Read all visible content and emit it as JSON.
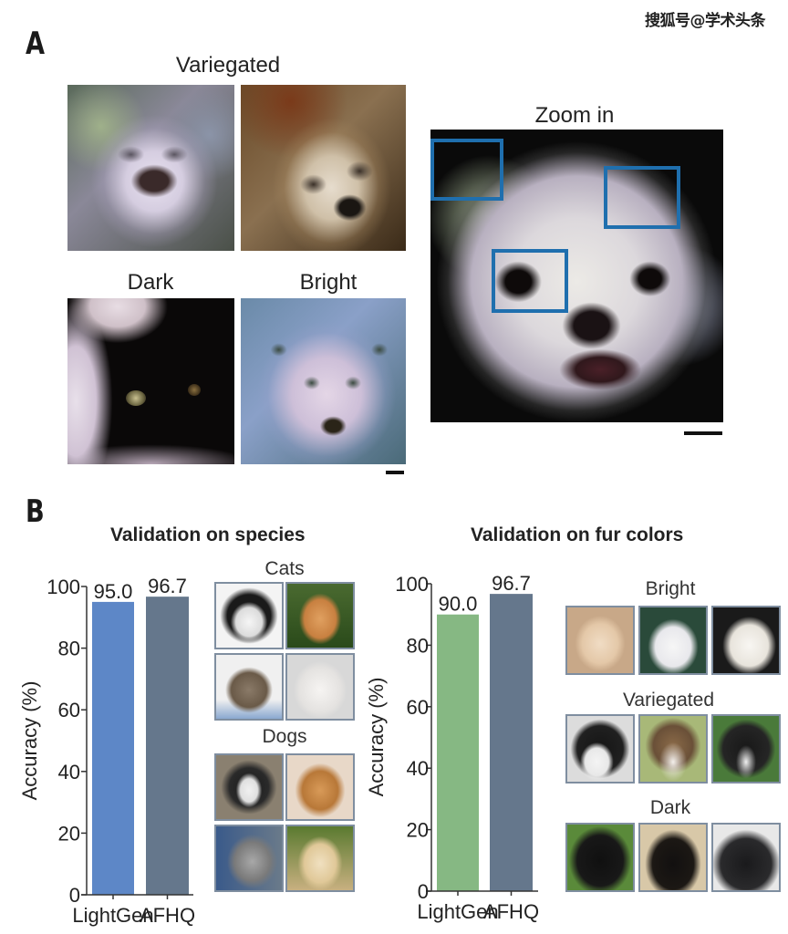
{
  "watermark": "搜狐号@学术头条",
  "panel_a": {
    "letter": "A",
    "labels": {
      "variegated": "Variegated",
      "dark": "Dark",
      "bright": "Bright",
      "zoom_in": "Zoom in"
    }
  },
  "panel_b": {
    "letter": "B",
    "species": {
      "title": "Validation on species",
      "groups": {
        "cats": "Cats",
        "dogs": "Dogs"
      }
    },
    "fur": {
      "title": "Validation on fur colors",
      "groups": {
        "bright": "Bright",
        "variegated": "Variegated",
        "dark": "Dark"
      }
    }
  },
  "colors": {
    "lightgen_species": "#5d87c7",
    "afhq": "#65778c",
    "lightgen_fur": "#86b883",
    "zoom_box": "#1f6fae"
  },
  "chart_data": [
    {
      "type": "bar",
      "title": "Validation on species",
      "categories": [
        "LightGen",
        "AFHQ"
      ],
      "values": [
        95.0,
        96.7
      ],
      "value_labels": [
        "95.0",
        "96.7"
      ],
      "xlabel": "",
      "ylabel": "Accuracy (%)",
      "ylim": [
        0,
        100
      ],
      "yticks": [
        "0",
        "20",
        "40",
        "60",
        "80",
        "100"
      ],
      "grid": false
    },
    {
      "type": "bar",
      "title": "Validation on fur colors",
      "categories": [
        "LightGen",
        "AFHQ"
      ],
      "values": [
        90.0,
        96.7
      ],
      "value_labels": [
        "90.0",
        "96.7"
      ],
      "xlabel": "",
      "ylabel": "Accuracy (%)",
      "ylim": [
        0,
        100
      ],
      "yticks": [
        "0",
        "20",
        "40",
        "60",
        "80",
        "100"
      ],
      "grid": false
    }
  ]
}
